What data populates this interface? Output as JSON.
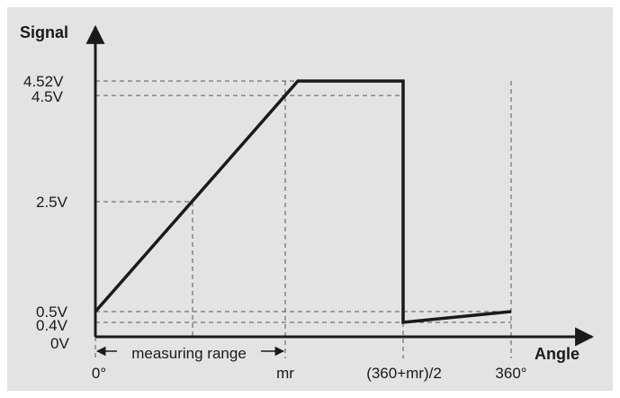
{
  "colors": {
    "background": "#ffffff",
    "panel": "#e3e3e3",
    "line": "#1a1a1a",
    "guide": "#555555"
  },
  "axes": {
    "y_title": "Signal",
    "x_title": "Angle"
  },
  "y_ticks": [
    "4.52V",
    "4.5V",
    "2.5V",
    "0.5V",
    "0.4V",
    "0V"
  ],
  "x_ticks": [
    "0°",
    "mr",
    "(360+mr)/2",
    "360°"
  ],
  "annotation": {
    "measuring_range": "measuring range"
  }
}
